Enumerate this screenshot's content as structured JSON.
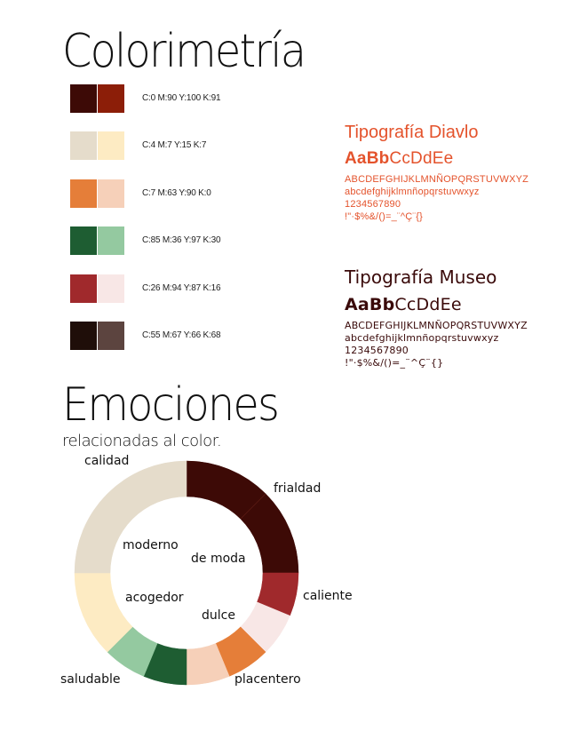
{
  "colorimetria": {
    "title": "Colorimetría",
    "swatches": [
      {
        "primary": "#3d0a06",
        "secondary": "#8c1e08",
        "cmyk": "C:0 M:90 Y:100 K:91"
      },
      {
        "primary": "#e5dccb",
        "secondary": "#fdebc3",
        "cmyk": "C:4 M:7 Y:15 K:7"
      },
      {
        "primary": "#e57e39",
        "secondary": "#f6d0b9",
        "cmyk": "C:7 M:63 Y:90 K:0"
      },
      {
        "primary": "#1e5d32",
        "secondary": "#94c9a0",
        "cmyk": "C:85 M:36 Y:97 K:30"
      },
      {
        "primary": "#a0292c",
        "secondary": "#f8e7e6",
        "cmyk": "C:26 M:94 Y:87 K:16"
      },
      {
        "primary": "#1f0e09",
        "secondary": "#5c443f",
        "cmyk": "C:55 M:67 Y:66 K:68"
      }
    ]
  },
  "typography": {
    "diavlo": {
      "title": "Tipografía Diavlo",
      "sample_bold": "AaBb",
      "sample_regular": "CcDdEe",
      "uppercase": "ABCDEFGHIJKLMNÑOPQRSTUVWXYZ",
      "lowercase": "abcdefghijklmnñopqrstuvwxyz",
      "digits": "1234567890",
      "symbols": "!\"·$%&/()=_¨^Ç¨{}",
      "color": "#e4532c"
    },
    "museo": {
      "title": "Tipografía Museo",
      "sample_bold": "AaBb",
      "sample_regular": "CcDdEe",
      "uppercase": "ABCDEFGHIJKLMNÑOPQRSTUVWXYZ",
      "lowercase": "abcdefghijklmnñopqrstuvwxyz",
      "digits": "1234567890",
      "symbols": "!\"·$%&/()=_¨^Ç¨{}",
      "color": "#3a0a0a"
    }
  },
  "emociones": {
    "title": "Emociones",
    "subtitle": "relacionadas al color.",
    "outer_labels": {
      "calidad": "calidad",
      "frialdad": "frialdad",
      "caliente": "caliente",
      "placentero": "placentero",
      "saludable": "saludable"
    },
    "inner_labels": {
      "moderno": "moderno",
      "de_moda": "de moda",
      "acogedor": "acogedor",
      "dulce": "dulce"
    },
    "ring_segments": [
      {
        "color": "#3d0a06",
        "value": 12.5
      },
      {
        "color": "#3d0a06",
        "value": 12.5
      },
      {
        "color": "#a0292c",
        "value": 6.25
      },
      {
        "color": "#f8e7e6",
        "value": 6.25
      },
      {
        "color": "#e57e39",
        "value": 6.25
      },
      {
        "color": "#f6d0b9",
        "value": 6.25
      },
      {
        "color": "#1e5d32",
        "value": 6.25
      },
      {
        "color": "#94c9a0",
        "value": 6.25
      },
      {
        "color": "#fdebc3",
        "value": 12.5
      },
      {
        "color": "#e5dccb",
        "value": 25
      }
    ]
  }
}
